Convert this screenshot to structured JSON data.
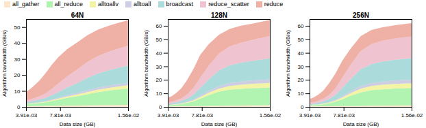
{
  "chart_data": [
    {
      "type": "area",
      "stacked": true,
      "title": "64N",
      "xlabel": "Data size (GB)",
      "ylabel": "Algorithm bandwidth (GB/s)",
      "x": [
        0.00391,
        0.00439,
        0.00488,
        0.00547,
        0.0061,
        0.00684,
        0.00763,
        0.00859,
        0.00977,
        0.011,
        0.0122,
        0.0137,
        0.0156
      ],
      "xlim": [
        0.00391,
        0.0156
      ],
      "xticks": [
        {
          "value": 0.00391,
          "label": "3.91e-03"
        },
        {
          "value": 0.00781,
          "label": "7.81e-03"
        },
        {
          "value": 0.0156,
          "label": "1.56e-02"
        }
      ],
      "ylim": [
        0,
        55
      ],
      "yticks": [
        0,
        10,
        20,
        30,
        40,
        50
      ],
      "grid": false,
      "legend": "upper left",
      "series": [
        {
          "name": "all_gather",
          "color": "#FDDCB5",
          "values": [
            0.4,
            0.45,
            0.5,
            0.55,
            0.6,
            0.65,
            0.7,
            0.8,
            0.9,
            1.0,
            1.1,
            1.2,
            1.3
          ]
        },
        {
          "name": "all_reduce",
          "color": "#90EE90",
          "values": [
            1.2,
            1.4,
            1.6,
            1.9,
            2.3,
            3.0,
            3.8,
            4.8,
            5.8,
            7.0,
            8.2,
            9.2,
            10.2
          ]
        },
        {
          "name": "alltoallv",
          "color": "#F0F080",
          "values": [
            0.2,
            0.25,
            0.3,
            0.35,
            0.4,
            0.55,
            0.7,
            0.9,
            1.1,
            1.4,
            1.6,
            1.8,
            2.0
          ]
        },
        {
          "name": "alltoall",
          "color": "#B8B8D8",
          "values": [
            0.15,
            0.18,
            0.22,
            0.27,
            0.32,
            0.42,
            0.55,
            0.7,
            0.9,
            1.1,
            1.25,
            1.4,
            1.55
          ]
        },
        {
          "name": "broadcast",
          "color": "#88CCCC",
          "values": [
            0.8,
            1.0,
            1.2,
            1.5,
            1.9,
            2.6,
            3.5,
            4.8,
            6.2,
            7.8,
            8.8,
            9.8,
            10.8
          ]
        },
        {
          "name": "reduce_scatter",
          "color": "#E8AABC",
          "values": [
            1.2,
            1.4,
            1.7,
            2.1,
            2.8,
            4.0,
            5.5,
            7.0,
            8.5,
            10.0,
            11.0,
            11.8,
            12.5
          ]
        },
        {
          "name": "reduce",
          "color": "#E89080",
          "values": [
            5.5,
            6.5,
            8.0,
            10.0,
            12.5,
            15.0,
            16.5,
            17.0,
            17.0,
            16.8,
            16.5,
            16.2,
            16.0
          ]
        }
      ]
    },
    {
      "type": "area",
      "stacked": true,
      "title": "128N",
      "xlabel": "Data size (GB)",
      "ylabel": "Algorithm bandwidth (GB/s)",
      "x": [
        0.00391,
        0.00439,
        0.00488,
        0.00547,
        0.0061,
        0.00684,
        0.00763,
        0.00859,
        0.00977,
        0.011,
        0.0122,
        0.0137,
        0.0156
      ],
      "xlim": [
        0.00391,
        0.0156
      ],
      "xticks": [
        {
          "value": 0.00391,
          "label": "3.91e-03"
        },
        {
          "value": 0.00781,
          "label": "7.81e-03"
        },
        {
          "value": 0.0156,
          "label": "1.56e-02"
        }
      ],
      "ylim": [
        0,
        65
      ],
      "yticks": [
        0,
        10,
        20,
        30,
        40,
        50,
        60
      ],
      "grid": false,
      "series": [
        {
          "name": "all_gather",
          "color": "#FDDCB5",
          "values": [
            0.3,
            0.35,
            0.4,
            0.45,
            0.5,
            0.55,
            0.6,
            0.7,
            0.8,
            0.9,
            1.0,
            1.1,
            1.2
          ]
        },
        {
          "name": "all_reduce",
          "color": "#90EE90",
          "values": [
            0.8,
            1.0,
            1.3,
            1.7,
            2.4,
            3.5,
            5.5,
            8.0,
            10.5,
            11.8,
            12.3,
            12.7,
            13.0
          ]
        },
        {
          "name": "alltoallv",
          "color": "#F0F080",
          "values": [
            0.2,
            0.25,
            0.3,
            0.4,
            0.55,
            0.8,
            1.2,
            1.7,
            2.2,
            2.8,
            3.1,
            3.3,
            3.5
          ]
        },
        {
          "name": "alltoall",
          "color": "#B8B8D8",
          "values": [
            0.15,
            0.2,
            0.25,
            0.32,
            0.45,
            0.65,
            1.0,
            1.4,
            1.9,
            2.2,
            2.4,
            2.6,
            2.7
          ]
        },
        {
          "name": "broadcast",
          "color": "#88CCCC",
          "values": [
            0.7,
            0.9,
            1.1,
            1.5,
            2.2,
            3.5,
            5.8,
            8.5,
            11.5,
            13.0,
            13.8,
            14.5,
            15.5
          ]
        },
        {
          "name": "reduce_scatter",
          "color": "#E8AABC",
          "values": [
            1.0,
            1.2,
            1.5,
            2.0,
            3.0,
            5.0,
            7.5,
            10.0,
            12.5,
            14.0,
            14.8,
            15.5,
            16.5
          ]
        },
        {
          "name": "reduce",
          "color": "#E89080",
          "values": [
            3.5,
            4.2,
            5.5,
            7.5,
            10.5,
            14.0,
            17.0,
            16.0,
            14.0,
            13.0,
            12.5,
            12.0,
            12.0
          ]
        }
      ]
    },
    {
      "type": "area",
      "stacked": true,
      "title": "256N",
      "xlabel": "Data size (GB)",
      "ylabel": "Algorithm bandwidth (GB/s)",
      "x": [
        0.00391,
        0.00439,
        0.00488,
        0.00547,
        0.0061,
        0.00684,
        0.00763,
        0.00859,
        0.00977,
        0.011,
        0.0122,
        0.0137,
        0.0156
      ],
      "xlim": [
        0.00391,
        0.0156
      ],
      "xticks": [
        {
          "value": 0.00391,
          "label": "3.91e-03"
        },
        {
          "value": 0.00781,
          "label": "7.81e-03"
        },
        {
          "value": 0.0156,
          "label": "1.56e-02"
        }
      ],
      "ylim": [
        0,
        65
      ],
      "yticks": [
        0,
        10,
        20,
        30,
        40,
        50,
        60
      ],
      "grid": false,
      "series": [
        {
          "name": "all_gather",
          "color": "#FDDCB5",
          "values": [
            0.3,
            0.35,
            0.4,
            0.45,
            0.5,
            0.55,
            0.6,
            0.65,
            0.75,
            0.85,
            0.95,
            1.05,
            1.15
          ]
        },
        {
          "name": "all_reduce",
          "color": "#90EE90",
          "values": [
            0.7,
            0.9,
            1.1,
            1.5,
            2.1,
            3.2,
            5.0,
            7.5,
            10.0,
            11.5,
            12.0,
            12.5,
            12.8
          ]
        },
        {
          "name": "alltoallv",
          "color": "#F0F080",
          "values": [
            0.2,
            0.25,
            0.3,
            0.4,
            0.55,
            0.8,
            1.3,
            1.9,
            2.7,
            3.1,
            3.4,
            3.5,
            3.6
          ]
        },
        {
          "name": "alltoall",
          "color": "#B8B8D8",
          "values": [
            0.15,
            0.18,
            0.22,
            0.3,
            0.42,
            0.6,
            0.95,
            1.4,
            1.9,
            2.2,
            2.4,
            2.55,
            2.65
          ]
        },
        {
          "name": "broadcast",
          "color": "#88CCCC",
          "values": [
            0.6,
            0.75,
            1.0,
            1.4,
            2.1,
            3.5,
            6.0,
            9.0,
            12.5,
            14.0,
            14.8,
            15.3,
            15.8
          ]
        },
        {
          "name": "reduce_scatter",
          "color": "#E8AABC",
          "values": [
            0.9,
            1.1,
            1.4,
            1.9,
            2.9,
            4.7,
            7.5,
            10.5,
            13.5,
            14.8,
            15.3,
            15.8,
            16.2
          ]
        },
        {
          "name": "reduce",
          "color": "#E89080",
          "values": [
            3.0,
            3.5,
            4.5,
            6.0,
            8.5,
            11.0,
            12.5,
            12.0,
            11.0,
            10.5,
            10.0,
            9.8,
            9.8
          ]
        }
      ]
    }
  ]
}
